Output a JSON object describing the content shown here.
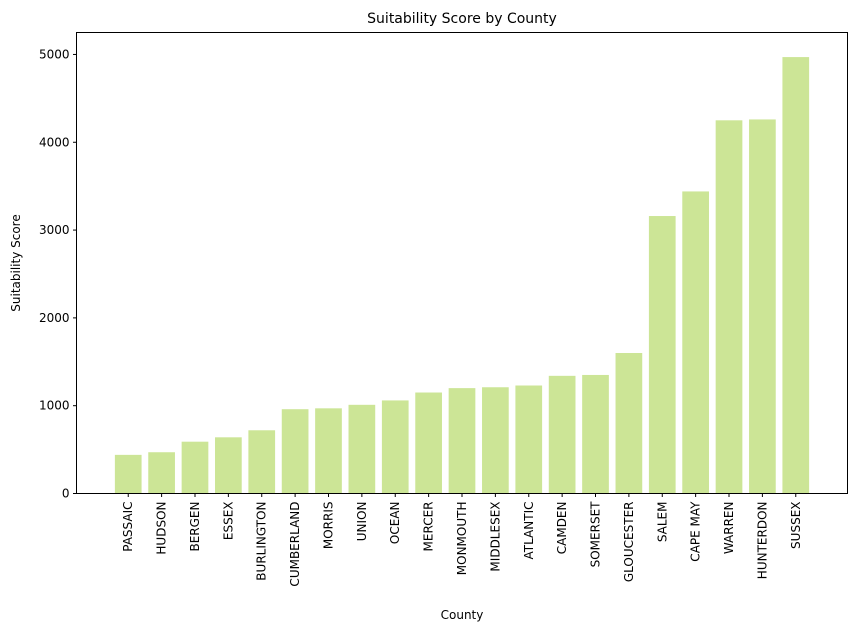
{
  "chart_data": {
    "type": "bar",
    "title": "Suitability Score by County",
    "xlabel": "County",
    "ylabel": "Suitability Score",
    "categories": [
      "PASSAIC",
      "HUDSON",
      "BERGEN",
      "ESSEX",
      "BURLINGTON",
      "CUMBERLAND",
      "MORRIS",
      "UNION",
      "OCEAN",
      "MERCER",
      "MONMOUTH",
      "MIDDLESEX",
      "ATLANTIC",
      "CAMDEN",
      "SOMERSET",
      "GLOUCESTER",
      "SALEM",
      "CAPE MAY",
      "WARREN",
      "HUNTERDON",
      "SUSSEX"
    ],
    "values": [
      440,
      470,
      590,
      640,
      720,
      960,
      970,
      1010,
      1060,
      1150,
      1200,
      1210,
      1230,
      1340,
      1350,
      1600,
      3160,
      3440,
      4250,
      4260,
      4970
    ],
    "ylim": [
      0,
      5250
    ],
    "yticks": [
      0,
      1000,
      2000,
      3000,
      4000,
      5000
    ],
    "bar_color": "#cce596",
    "grid": false,
    "legend": "none"
  }
}
